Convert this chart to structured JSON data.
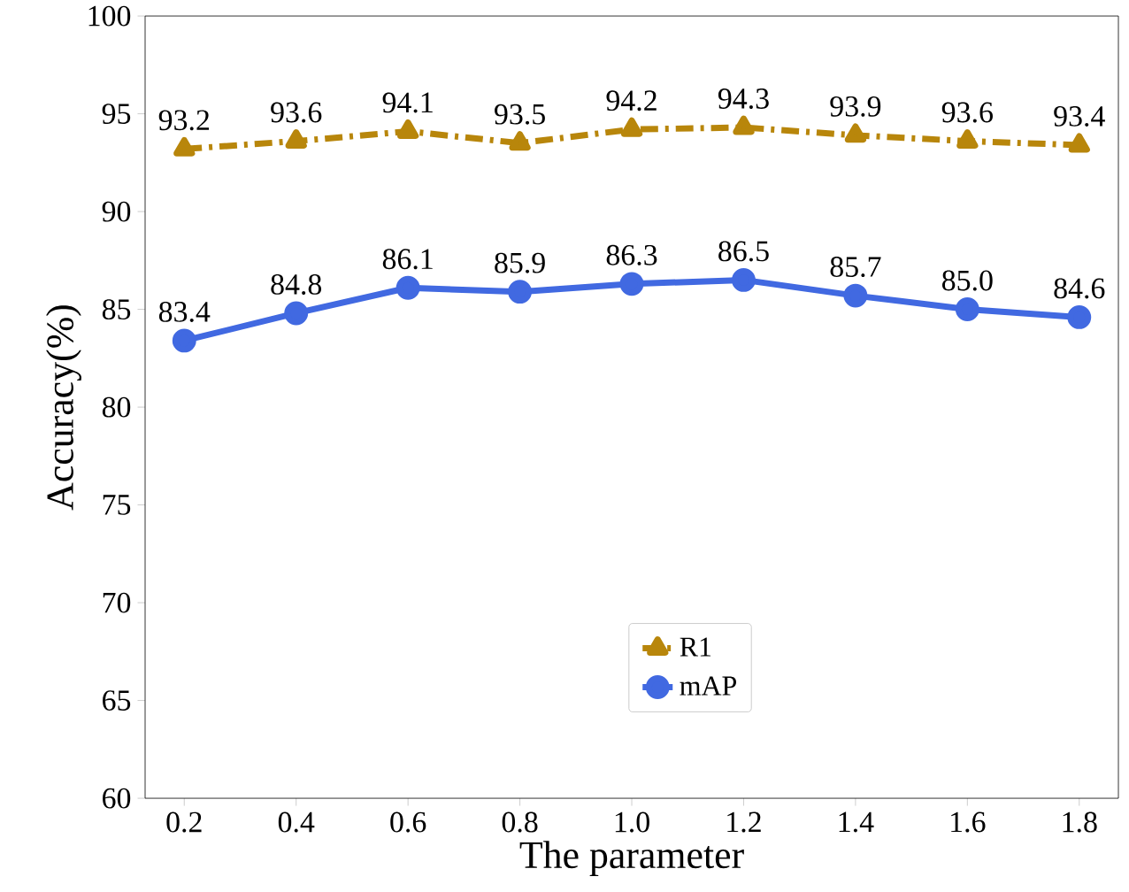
{
  "chart_data": {
    "type": "line",
    "xlabel": "The parameter",
    "ylabel": "Accuracy(%)",
    "x": [
      0.2,
      0.4,
      0.6,
      0.8,
      1.0,
      1.2,
      1.4,
      1.6,
      1.8
    ],
    "series": [
      {
        "name": "R1",
        "color": "#b8860b",
        "marker": "triangle",
        "line_style": "dashdot",
        "values": [
          93.2,
          93.6,
          94.1,
          93.5,
          94.2,
          94.3,
          93.9,
          93.6,
          93.4
        ],
        "value_labels": [
          "93.2",
          "93.6",
          "94.1",
          "93.5",
          "94.2",
          "94.3",
          "93.9",
          "93.6",
          "93.4"
        ]
      },
      {
        "name": "mAP",
        "color": "#4169e1",
        "marker": "circle",
        "line_style": "solid",
        "values": [
          83.4,
          84.8,
          86.1,
          85.9,
          86.3,
          86.5,
          85.7,
          85.0,
          84.6
        ],
        "value_labels": [
          "83.4",
          "84.8",
          "86.1",
          "85.9",
          "86.3",
          "86.5",
          "85.7",
          "85.0",
          "84.6"
        ]
      }
    ],
    "xlim": [
      0.13,
      1.87
    ],
    "ylim": [
      60,
      100
    ],
    "xticks": [
      0.2,
      0.4,
      0.6,
      0.8,
      {
        "value": 1.0,
        "label": "1.0"
      },
      1.2,
      1.4,
      1.6,
      1.8
    ],
    "yticks": [
      60,
      65,
      70,
      75,
      80,
      85,
      90,
      95,
      100
    ],
    "grid": false,
    "legend": "bottom"
  }
}
